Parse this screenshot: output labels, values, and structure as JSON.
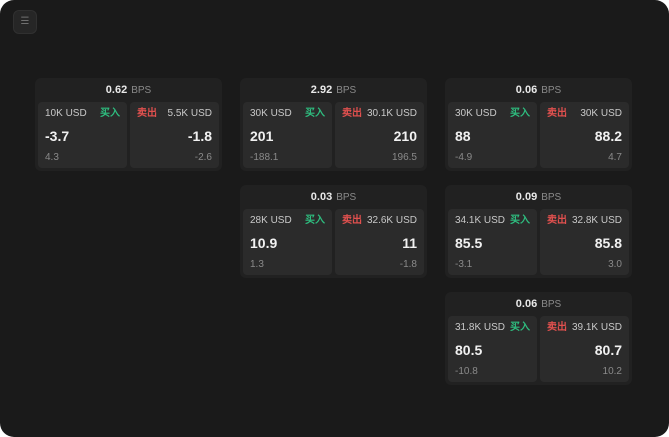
{
  "labels": {
    "bps": "BPS",
    "buy": "买入",
    "sell": "卖出"
  },
  "icons": {
    "menu": "☰"
  },
  "colors": {
    "background": "#1a1a1a",
    "card": "#212121",
    "panel": "#2b2b2b",
    "buy": "#2ebd7f",
    "sell": "#e0504e"
  },
  "cards": [
    {
      "bps": "0.62",
      "buy": {
        "amount": "10K USD",
        "price": "-3.7",
        "delta": "4.3"
      },
      "sell": {
        "amount": "5.5K USD",
        "price": "-1.8",
        "delta": "-2.6"
      }
    },
    {
      "bps": "2.92",
      "buy": {
        "amount": "30K USD",
        "price": "201",
        "delta": "-188.1"
      },
      "sell": {
        "amount": "30.1K USD",
        "price": "210",
        "delta": "196.5"
      }
    },
    {
      "bps": "0.06",
      "buy": {
        "amount": "30K USD",
        "price": "88",
        "delta": "-4.9"
      },
      "sell": {
        "amount": "30K USD",
        "price": "88.2",
        "delta": "4.7"
      }
    },
    {
      "bps": "0.03",
      "buy": {
        "amount": "28K USD",
        "price": "10.9",
        "delta": "1.3"
      },
      "sell": {
        "amount": "32.6K USD",
        "price": "11",
        "delta": "-1.8"
      }
    },
    {
      "bps": "0.09",
      "buy": {
        "amount": "34.1K USD",
        "price": "85.5",
        "delta": "-3.1"
      },
      "sell": {
        "amount": "32.8K USD",
        "price": "85.8",
        "delta": "3.0"
      }
    },
    {
      "bps": "0.06",
      "buy": {
        "amount": "31.8K USD",
        "price": "80.5",
        "delta": "-10.8"
      },
      "sell": {
        "amount": "39.1K USD",
        "price": "80.7",
        "delta": "10.2"
      }
    }
  ]
}
